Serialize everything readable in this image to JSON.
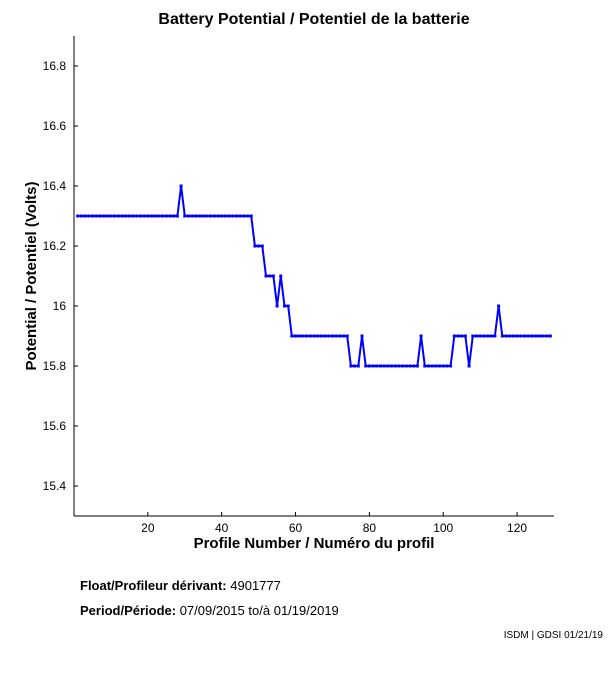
{
  "chart_data": {
    "type": "line",
    "title": "Battery Potential / Potentiel de la batterie",
    "xlabel": "Profile Number / Numéro du profil",
    "ylabel": "Potential / Potentiel (Volts)",
    "xlim": [
      0,
      130
    ],
    "ylim": [
      15.3,
      16.9
    ],
    "xticks": [
      20,
      40,
      60,
      80,
      100,
      120
    ],
    "yticks": [
      15.4,
      15.6,
      15.8,
      16,
      16.2,
      16.4,
      16.6,
      16.8
    ],
    "ytick_labels": [
      "15.4",
      "15.6",
      "15.8",
      "16",
      "16.2",
      "16.4",
      "16.6",
      "16.8"
    ],
    "grid": false,
    "color": "#0000ff",
    "x": [
      1,
      2,
      3,
      4,
      5,
      6,
      7,
      8,
      9,
      10,
      11,
      12,
      13,
      14,
      15,
      16,
      17,
      18,
      19,
      20,
      21,
      22,
      23,
      24,
      25,
      26,
      27,
      28,
      29,
      30,
      31,
      32,
      33,
      34,
      35,
      36,
      37,
      38,
      39,
      40,
      41,
      42,
      43,
      44,
      45,
      46,
      47,
      48,
      49,
      50,
      51,
      52,
      53,
      54,
      55,
      56,
      57,
      58,
      59,
      60,
      61,
      62,
      63,
      64,
      65,
      66,
      67,
      68,
      69,
      70,
      71,
      72,
      73,
      74,
      75,
      76,
      77,
      78,
      79,
      80,
      81,
      82,
      83,
      84,
      85,
      86,
      87,
      88,
      89,
      90,
      91,
      92,
      93,
      94,
      95,
      96,
      97,
      98,
      99,
      100,
      101,
      102,
      103,
      104,
      105,
      106,
      107,
      108,
      109,
      110,
      111,
      112,
      113,
      114,
      115,
      116,
      117,
      118,
      119,
      120,
      121,
      122,
      123,
      124,
      125,
      126,
      127,
      128,
      129
    ],
    "y": [
      16.3,
      16.3,
      16.3,
      16.3,
      16.3,
      16.3,
      16.3,
      16.3,
      16.3,
      16.3,
      16.3,
      16.3,
      16.3,
      16.3,
      16.3,
      16.3,
      16.3,
      16.3,
      16.3,
      16.3,
      16.3,
      16.3,
      16.3,
      16.3,
      16.3,
      16.3,
      16.3,
      16.3,
      16.4,
      16.3,
      16.3,
      16.3,
      16.3,
      16.3,
      16.3,
      16.3,
      16.3,
      16.3,
      16.3,
      16.3,
      16.3,
      16.3,
      16.3,
      16.3,
      16.3,
      16.3,
      16.3,
      16.3,
      16.2,
      16.2,
      16.2,
      16.1,
      16.1,
      16.1,
      16.0,
      16.1,
      16.0,
      16.0,
      15.9,
      15.9,
      15.9,
      15.9,
      15.9,
      15.9,
      15.9,
      15.9,
      15.9,
      15.9,
      15.9,
      15.9,
      15.9,
      15.9,
      15.9,
      15.9,
      15.8,
      15.8,
      15.8,
      15.9,
      15.8,
      15.8,
      15.8,
      15.8,
      15.8,
      15.8,
      15.8,
      15.8,
      15.8,
      15.8,
      15.8,
      15.8,
      15.8,
      15.8,
      15.8,
      15.9,
      15.8,
      15.8,
      15.8,
      15.8,
      15.8,
      15.8,
      15.8,
      15.8,
      15.9,
      15.9,
      15.9,
      15.9,
      15.8,
      15.9,
      15.9,
      15.9,
      15.9,
      15.9,
      15.9,
      15.9,
      16.0,
      15.9,
      15.9,
      15.9,
      15.9,
      15.9,
      15.9,
      15.9,
      15.9,
      15.9,
      15.9,
      15.9,
      15.9,
      15.9,
      15.9
    ]
  },
  "info": {
    "float_label": "Float/Profileur dérivant:",
    "float_value": "4901777",
    "period_label": "Period/Période:",
    "period_start": "07/09/2015",
    "period_sep": "to/à",
    "period_end": "01/19/2019"
  },
  "credit": "ISDM | GDSI 01/21/19"
}
